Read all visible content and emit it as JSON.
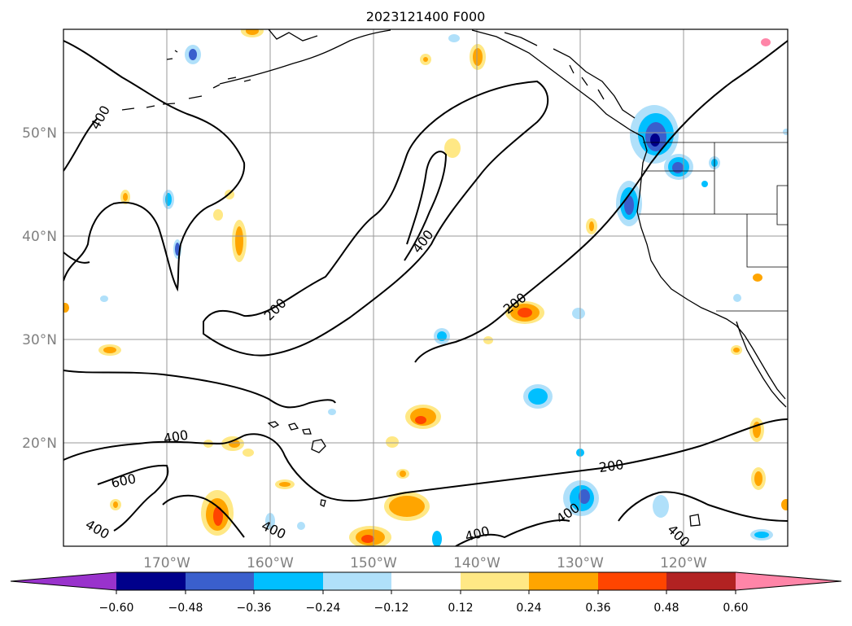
{
  "title": "2023121400 F000",
  "map": {
    "lat_ticks": [
      "50°N",
      "40°N",
      "30°N",
      "20°N"
    ],
    "lon_ticks": [
      "170°W",
      "160°W",
      "150°W",
      "140°W",
      "130°W",
      "120°W"
    ],
    "contour_labels": [
      "400",
      "200",
      "400",
      "200",
      "400",
      "600",
      "400",
      "400",
      "200",
      "400",
      "400",
      "400"
    ]
  },
  "colorbar": {
    "ticks": [
      "−0.60",
      "−0.48",
      "−0.36",
      "−0.24",
      "−0.12",
      "0.12",
      "0.24",
      "0.36",
      "0.48",
      "0.60"
    ],
    "colors": [
      "#9932cc",
      "#00008b",
      "#3a5fcd",
      "#00bfff",
      "#b0e0fa",
      "#ffffff",
      "#ffe885",
      "#ffa500",
      "#ff4500",
      "#b22222",
      "#ff85a8"
    ]
  },
  "colors": {
    "land_line": "#000000",
    "grid": "#999999",
    "contour": "#000000"
  }
}
